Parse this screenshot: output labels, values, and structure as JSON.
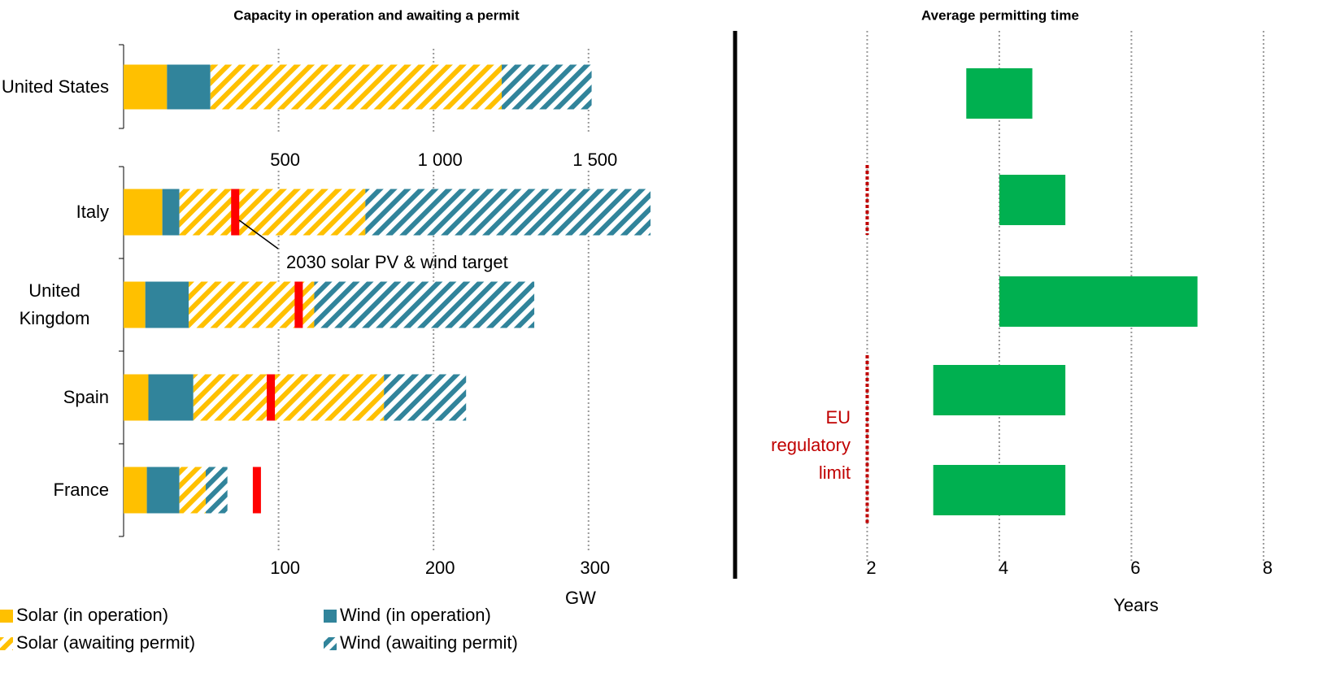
{
  "chart_data": [
    {
      "type": "stacked-hbar",
      "title": "Capacity in operation and awaiting a permit",
      "categories": [
        "United States"
      ],
      "series": [
        {
          "name": "Solar (in operation)",
          "color": "#ffc000",
          "hatch": false,
          "values": [
            140
          ]
        },
        {
          "name": "Wind (in operation)",
          "color": "#31849b",
          "hatch": false,
          "values": [
            140
          ]
        },
        {
          "name": "Solar (awaiting permit)",
          "color": "#ffc000",
          "hatch": true,
          "values": [
            940
          ]
        },
        {
          "name": "Wind (awaiting permit)",
          "color": "#31849b",
          "hatch": true,
          "values": [
            290
          ]
        }
      ],
      "xlim": [
        0,
        1700
      ],
      "xticks": [
        500,
        {
          "value": 1000,
          "label": "1 000"
        },
        {
          "value": 1500,
          "label": "1 500"
        }
      ],
      "grid": true
    },
    {
      "type": "stacked-hbar",
      "categories": [
        "Italy",
        "United Kingdom",
        "Spain",
        "France"
      ],
      "series": [
        {
          "name": "Solar (in operation)",
          "color": "#ffc000",
          "hatch": false,
          "values": [
            25,
            14,
            16,
            15
          ]
        },
        {
          "name": "Wind (in operation)",
          "color": "#31849b",
          "hatch": false,
          "values": [
            11,
            28,
            29,
            21
          ]
        },
        {
          "name": "Solar (awaiting permit)",
          "color": "#ffc000",
          "hatch": true,
          "values": [
            120,
            81,
            123,
            17
          ]
        },
        {
          "name": "Wind (awaiting permit)",
          "color": "#31849b",
          "hatch": true,
          "values": [
            184,
            142,
            53,
            14
          ]
        }
      ],
      "targets": [
        72,
        113,
        95,
        86
      ],
      "target_color": "#ff0000",
      "annotation": "2030 solar PV & wind target",
      "xlabel": "GW",
      "xlim": [
        0,
        340
      ],
      "xticks": [
        100,
        200,
        300
      ],
      "grid": true
    },
    {
      "type": "range-hbar",
      "title": "Average permitting time",
      "ranges": [
        [
          3.5,
          4.5
        ],
        [
          4,
          5
        ],
        [
          4,
          7
        ],
        [
          3,
          5
        ],
        [
          3,
          5
        ]
      ],
      "color": "#00b050",
      "limits": [
        null,
        2,
        null,
        2,
        2
      ],
      "limit_label": "EU regulatory limit",
      "limit_color": "#c00000",
      "xlabel": "Years",
      "xlim": [
        0,
        8.1
      ],
      "xticks": [
        2,
        4,
        6,
        8
      ],
      "grid": true
    }
  ]
}
